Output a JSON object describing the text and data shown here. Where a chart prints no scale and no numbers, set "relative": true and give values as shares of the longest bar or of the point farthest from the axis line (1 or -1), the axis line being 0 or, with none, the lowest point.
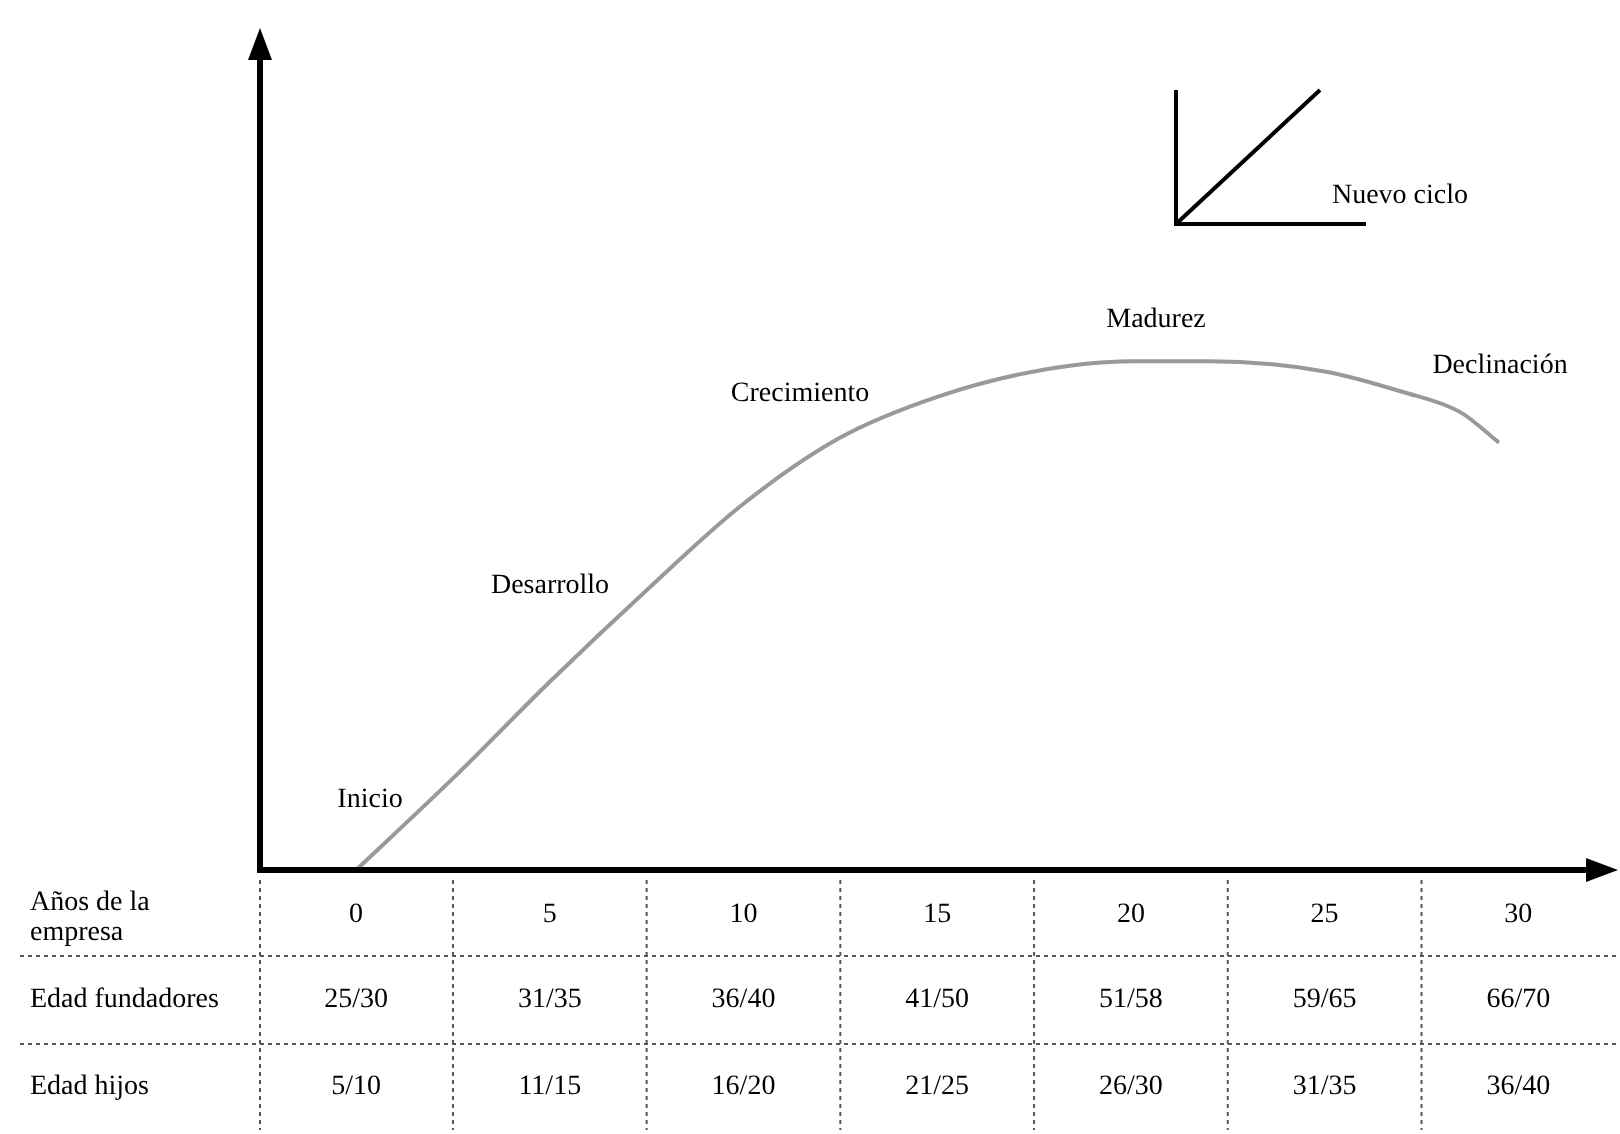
{
  "chart_data": {
    "type": "line",
    "relative": true,
    "xlabel": "Años de la empresa",
    "xlim": [
      -2.48,
      31.85
    ],
    "xticks": [
      0,
      5,
      10,
      15,
      20,
      25,
      30
    ],
    "x": [
      0,
      2.5,
      5,
      7.5,
      10,
      12.5,
      15,
      17.5,
      20,
      22,
      25,
      27,
      28.5,
      29.5
    ],
    "series": [
      {
        "color": "#999999",
        "values": [
          0,
          0.18,
          0.37,
          0.55,
          0.72,
          0.85,
          0.93,
          0.98,
          1.0,
          1.0,
          0.98,
          0.94,
          0.9,
          0.84
        ]
      }
    ],
    "marker": "none",
    "grid": false,
    "legend": false,
    "annotations": [
      "Inicio",
      "Desarrollo",
      "Crecimiento",
      "Madurez",
      "Declinación",
      "Nuevo ciclo",
      "Edad fundadores",
      "25/30",
      "31/35",
      "36/40",
      "41/50",
      "51/58",
      "59/65",
      "66/70",
      "Edad hijos",
      "5/10",
      "11/15",
      "16/20",
      "21/25",
      "26/30",
      "31/35",
      "36/40"
    ]
  }
}
